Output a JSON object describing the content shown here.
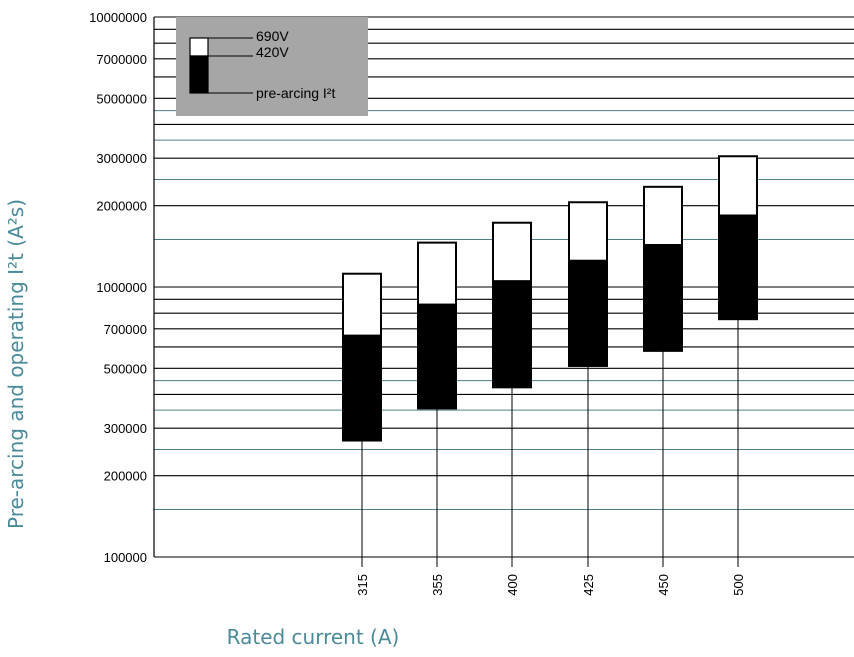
{
  "chart_data": {
    "type": "bar",
    "scale_y": "log",
    "ylim": [
      100000,
      10000000
    ],
    "xlabel": "Rated current (A)",
    "ylabel": "Pre-arcing and operating I²t (A²s)",
    "categories": [
      "315",
      "355",
      "400",
      "425",
      "450",
      "500"
    ],
    "series": [
      {
        "name": "pre-arcing I²t",
        "low": [
          270000,
          355000,
          425000,
          510000,
          580000,
          760000
        ]
      },
      {
        "name": "420V",
        "high": [
          660000,
          860000,
          1050000,
          1250000,
          1430000,
          1840000
        ]
      },
      {
        "name": "690V",
        "high": [
          1120000,
          1460000,
          1730000,
          2060000,
          2350000,
          3050000
        ]
      }
    ],
    "y_tick_labels": [
      "10000000",
      "7000000",
      "5000000",
      "3000000",
      "2000000",
      "1000000",
      "700000",
      "500000",
      "300000",
      "200000",
      "100000"
    ],
    "y_tick_values": [
      10000000,
      7000000,
      5000000,
      3000000,
      2000000,
      1000000,
      700000,
      500000,
      300000,
      200000,
      100000
    ],
    "gridlines_black": [
      10000000,
      9000000,
      8000000,
      7000000,
      6000000,
      5000000,
      4000000,
      3000000,
      2000000,
      1000000,
      900000,
      800000,
      700000,
      600000,
      500000,
      400000,
      300000,
      200000,
      100000
    ],
    "gridlines_teal": [
      4500000,
      3500000,
      2500000,
      1500000,
      450000,
      350000,
      250000,
      150000
    ],
    "legend": {
      "position": "top-left",
      "entries": [
        "690V",
        "420V",
        "pre-arcing I²t"
      ]
    },
    "colors": {
      "upper_segment": "#ffffff",
      "lower_segment": "#000000",
      "legend_bg": "#a6a6a6",
      "teal_grid": "#4f7f86",
      "axis_title": "#4a8a99"
    }
  }
}
